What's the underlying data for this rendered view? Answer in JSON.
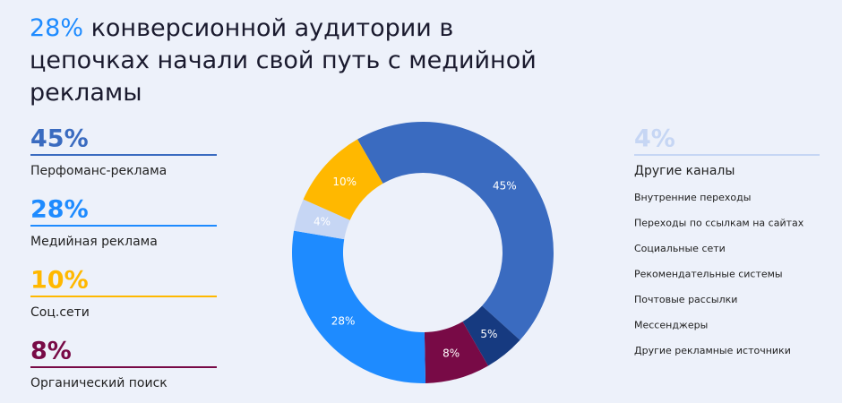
{
  "chart_data": {
    "type": "pie",
    "donut": true,
    "title_highlight": "28%",
    "title": "конверсионной аудитории в цепочках начали свой путь с медийной рекламы",
    "categories": [
      "Перфоманс-реклама",
      null,
      "Органический поиск",
      "Медийная реклама",
      "Другие каналы",
      "Соц.сети"
    ],
    "values": [
      45,
      5,
      8,
      28,
      4,
      10
    ],
    "value_labels": [
      "45%",
      "5%",
      "8%",
      "28%",
      "4%",
      "10%"
    ],
    "colors": [
      "#3a6bc0",
      "#163a80",
      "#780a46",
      "#1e8bff",
      "#c6d6f4",
      "#ffb800"
    ],
    "other_channels": [
      "Внутренние переходы",
      "Переходы по ссылкам на сайтах",
      "Социальные сети",
      "Рекомендательные системы",
      "Почтовые рассылки",
      "Мессенджеры",
      "Другие рекламные источники"
    ]
  }
}
